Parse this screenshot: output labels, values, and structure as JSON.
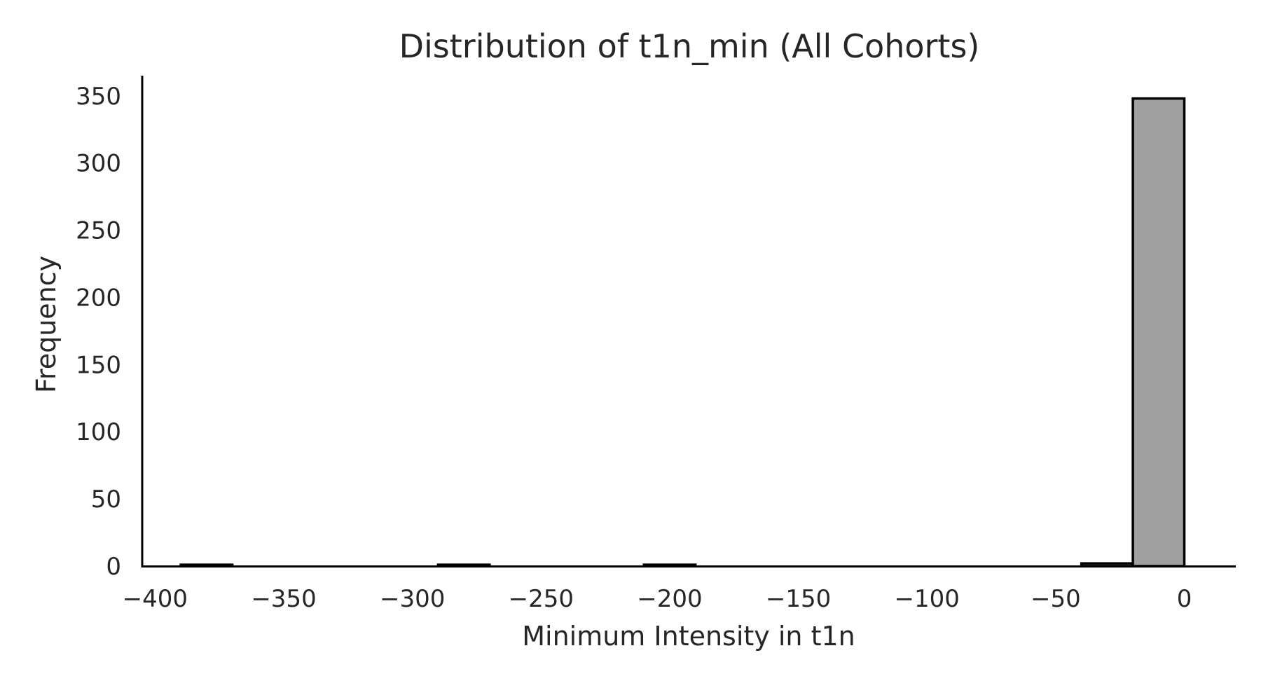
{
  "chart_data": {
    "type": "bar",
    "title": "Distribution of t1n_min (All Cohorts)",
    "xlabel": "Minimum Intensity in t1n",
    "ylabel": "Frequency",
    "xlim": [
      -405,
      20
    ],
    "ylim": [
      0,
      365
    ],
    "xticks": [
      -400,
      -350,
      -300,
      -250,
      -200,
      -150,
      -100,
      -50,
      0
    ],
    "yticks": [
      0,
      50,
      100,
      150,
      200,
      250,
      300,
      350
    ],
    "bar_color": "#a0a0a0",
    "edge_color": "#000000",
    "grid": false,
    "series": [
      {
        "bins": [
          [
            -390,
            -370
          ],
          [
            -370,
            -350
          ],
          [
            -350,
            -330
          ],
          [
            -330,
            -310
          ],
          [
            -310,
            -290
          ],
          [
            -290,
            -270
          ],
          [
            -270,
            -250
          ],
          [
            -250,
            -230
          ],
          [
            -230,
            -210
          ],
          [
            -210,
            -190
          ],
          [
            -190,
            -170
          ],
          [
            -170,
            -150
          ],
          [
            -150,
            -130
          ],
          [
            -130,
            -110
          ],
          [
            -110,
            -90
          ],
          [
            -90,
            -70
          ],
          [
            -70,
            -50
          ],
          [
            -50,
            -30
          ],
          [
            -40,
            -20
          ],
          [
            -20,
            0
          ]
        ],
        "values": [
          1,
          0,
          0,
          0,
          0,
          1,
          0,
          0,
          0,
          1,
          0,
          0,
          0,
          0,
          0,
          0,
          0,
          0,
          2,
          348
        ]
      }
    ]
  }
}
